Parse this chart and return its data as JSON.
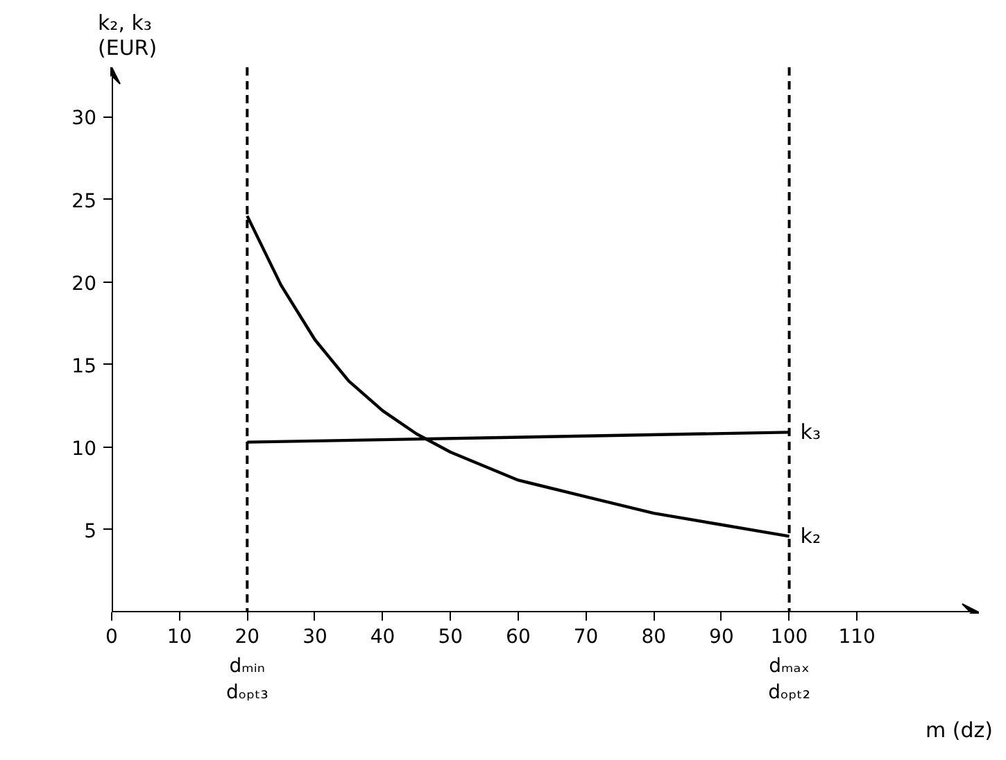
{
  "chart_data": {
    "type": "line",
    "xlabel": "m (dz)",
    "ylabel": "k₂, k₃\n(EUR)",
    "xlim": [
      0,
      128
    ],
    "ylim": [
      0,
      33
    ],
    "xticks": [
      0,
      10,
      20,
      30,
      40,
      50,
      60,
      70,
      80,
      90,
      100,
      110
    ],
    "yticks": [
      5,
      10,
      15,
      20,
      25,
      30
    ],
    "grid": false,
    "marker": "none",
    "series": [
      {
        "name": "k₂",
        "color": "#000000",
        "x": [
          20,
          25,
          30,
          35,
          40,
          45,
          50,
          60,
          70,
          80,
          90,
          100
        ],
        "values": [
          24,
          19.8,
          16.5,
          14,
          12.2,
          10.8,
          9.7,
          8,
          7,
          6,
          5.3,
          4.6
        ]
      },
      {
        "name": "k₃",
        "color": "#000000",
        "x": [
          20,
          100
        ],
        "values": [
          10.3,
          10.9
        ]
      }
    ],
    "ref_lines": [
      {
        "axis": "x",
        "value": 20,
        "label": "dₘᵢₙ\ndₒₚₜ₃",
        "line_style": "dashed",
        "color": "#000000"
      },
      {
        "axis": "x",
        "value": 100,
        "label": "dₘₐₓ\ndₒₚₜ₂",
        "line_style": "dashed",
        "color": "#000000"
      }
    ]
  }
}
